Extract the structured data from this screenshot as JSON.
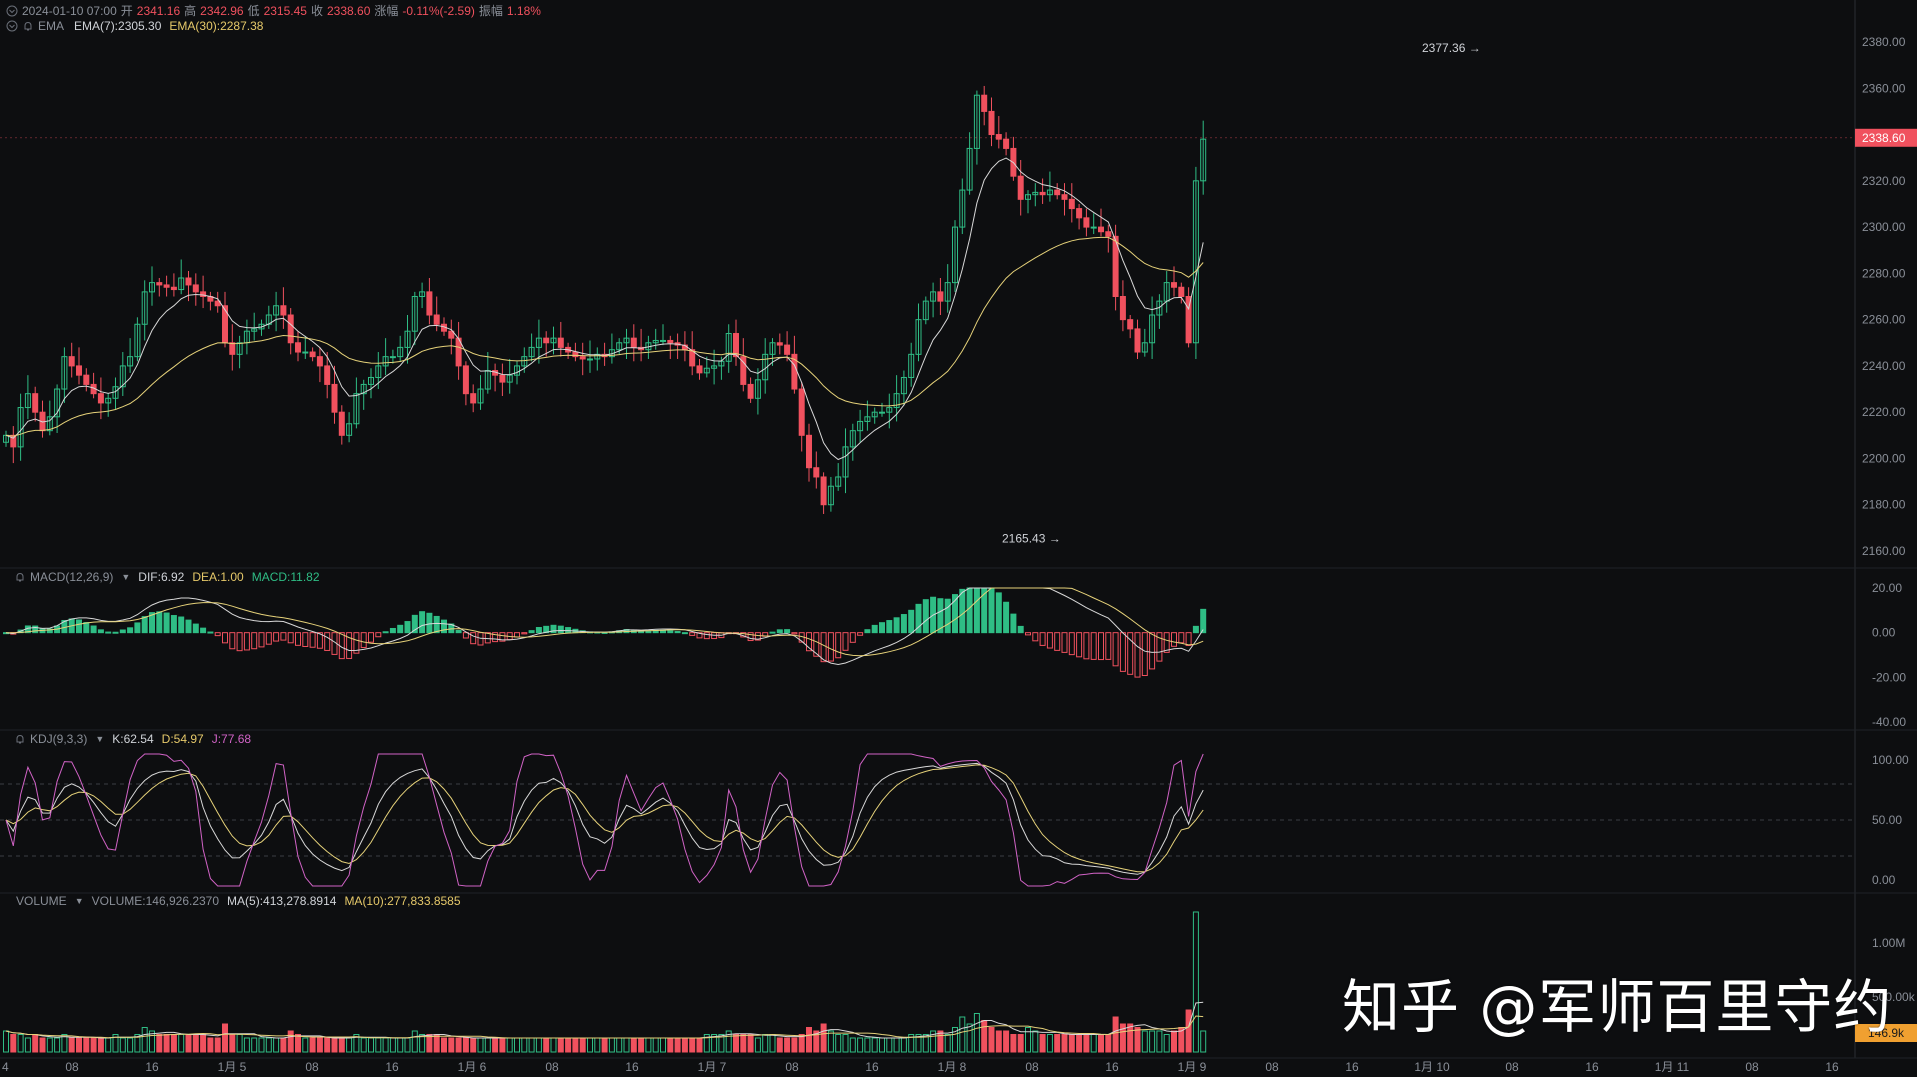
{
  "header": {
    "date": "2024-01-10 07:00",
    "open_label": "开",
    "open": "2341.16",
    "high_label": "高",
    "high": "2342.96",
    "low_label": "低",
    "low": "2315.45",
    "close_label": "收",
    "close": "2338.60",
    "change_label": "涨幅",
    "change": "-0.11%(-2.59)",
    "amp_label": "振幅",
    "amp": "1.18%"
  },
  "ema_legend": {
    "name": "EMA",
    "ema7": "EMA(7):2305.30",
    "ema30": "EMA(30):2287.38"
  },
  "macd_legend": {
    "name": "MACD(12,26,9)",
    "dif": "DIF:6.92",
    "dea": "DEA:1.00",
    "macd": "MACD:11.82"
  },
  "kdj_legend": {
    "name": "KDJ(9,3,3)",
    "k": "K:62.54",
    "d": "D:54.97",
    "j": "J:77.68"
  },
  "vol_legend": {
    "name": "VOLUME",
    "vol": "VOLUME:146,926.2370",
    "ma5": "MA(5):413,278.8914",
    "ma10": "MA(10):277,833.8585"
  },
  "watermark": "知乎 @军师百里守约",
  "colors": {
    "up": "#2fbd85",
    "down": "#f0515e",
    "ema7": "#d8d8d8",
    "ema30": "#e6d27a",
    "kdj_j": "#d163c6",
    "vol_tag": "#f0a030"
  },
  "chart_data": {
    "type": "candlestick",
    "price_axis": {
      "min": 2160,
      "max": 2380,
      "ticks": [
        "2380.00",
        "2360.00",
        "2340.00",
        "2320.00",
        "2300.00",
        "2280.00",
        "2260.00",
        "2240.00",
        "2220.00",
        "2200.00",
        "2180.00",
        "2160.00"
      ]
    },
    "current_price_tag": "2338.60",
    "high_marker": {
      "label": "2377.36",
      "value": 2377.36
    },
    "low_marker": {
      "label": "2165.43",
      "value": 2165.43
    },
    "macd_axis": {
      "min": -40,
      "max": 20,
      "ticks": [
        "20.00",
        "0.00",
        "-20.00",
        "-40.00"
      ]
    },
    "kdj_axis": {
      "min": 0,
      "max": 100,
      "ticks": [
        "100.00",
        "50.00",
        "0.00"
      ]
    },
    "volume_axis": {
      "ticks": [
        "1.00M",
        "500.00k"
      ],
      "current_tag": "146.9k"
    },
    "x_axis_labels": [
      "4",
      "08",
      "16",
      "1月 5",
      "08",
      "16",
      "1月 6",
      "08",
      "16",
      "1月 7",
      "08",
      "16",
      "1月 8",
      "08",
      "16",
      "1月 9",
      "08",
      "16",
      "1月 10",
      "08",
      "16",
      "1月 11",
      "08",
      "16"
    ],
    "closes": [
      2210,
      2205,
      2222,
      2228,
      2220,
      2212,
      2218,
      2230,
      2244,
      2240,
      2236,
      2232,
      2228,
      2224,
      2226,
      2231,
      2240,
      2244,
      2258,
      2272,
      2276,
      2275,
      2274,
      2273,
      2278,
      2275,
      2272,
      2270,
      2268,
      2266,
      2250,
      2245,
      2250,
      2255,
      2256,
      2258,
      2262,
      2266,
      2262,
      2250,
      2246,
      2246,
      2244,
      2240,
      2232,
      2220,
      2210,
      2215,
      2228,
      2232,
      2235,
      2240,
      2244,
      2244,
      2248,
      2255,
      2270,
      2272,
      2262,
      2258,
      2255,
      2252,
      2240,
      2228,
      2224,
      2230,
      2238,
      2236,
      2233,
      2236,
      2240,
      2244,
      2248,
      2252,
      2250,
      2252,
      2248,
      2246,
      2244,
      2243,
      2243,
      2245,
      2244,
      2247,
      2250,
      2252,
      2248,
      2247,
      2250,
      2251,
      2251,
      2250,
      2249,
      2247,
      2240,
      2237,
      2239,
      2240,
      2242,
      2254,
      2244,
      2232,
      2226,
      2234,
      2245,
      2250,
      2249,
      2245,
      2230,
      2210,
      2196,
      2192,
      2180,
      2188,
      2192,
      2205,
      2212,
      2216,
      2218,
      2220,
      2220,
      2222,
      2228,
      2235,
      2245,
      2260,
      2268,
      2272,
      2268,
      2276,
      2300,
      2316,
      2334,
      2357,
      2350,
      2340,
      2338,
      2334,
      2322,
      2312,
      2314,
      2315,
      2314,
      2316,
      2314,
      2312,
      2308,
      2304,
      2300,
      2300,
      2298,
      2296,
      2270,
      2260,
      2256,
      2246,
      2250,
      2262,
      2268,
      2276,
      2274,
      2270,
      2250,
      2320,
      2338
    ],
    "volumes": [
      6,
      5,
      5,
      4,
      5,
      4,
      4,
      4,
      5,
      4,
      4,
      4,
      4,
      4,
      4,
      5,
      4,
      4,
      5,
      7,
      6,
      5,
      5,
      5,
      5,
      5,
      5,
      5,
      4,
      4,
      8,
      5,
      5,
      4,
      4,
      4,
      4,
      4,
      4,
      6,
      5,
      4,
      4,
      4,
      4,
      4,
      4,
      4,
      5,
      4,
      4,
      4,
      4,
      4,
      4,
      4,
      6,
      5,
      5,
      5,
      4,
      4,
      4,
      4,
      4,
      4,
      4,
      4,
      4,
      4,
      4,
      4,
      4,
      4,
      4,
      4,
      4,
      4,
      4,
      4,
      4,
      4,
      4,
      4,
      4,
      4,
      4,
      4,
      4,
      4,
      4,
      4,
      4,
      4,
      4,
      4,
      5,
      5,
      5,
      6,
      5,
      5,
      5,
      4,
      5,
      5,
      4,
      4,
      4,
      5,
      7,
      6,
      8,
      6,
      5,
      5,
      4,
      4,
      4,
      4,
      4,
      4,
      4,
      4,
      5,
      5,
      5,
      6,
      6,
      5,
      7,
      10,
      8,
      11,
      9,
      7,
      6,
      6,
      5,
      5,
      7,
      6,
      5,
      5,
      5,
      5,
      5,
      5,
      5,
      5,
      5,
      5,
      10,
      8,
      8,
      7,
      6,
      6,
      6,
      5,
      6,
      7,
      12,
      40,
      6
    ]
  }
}
